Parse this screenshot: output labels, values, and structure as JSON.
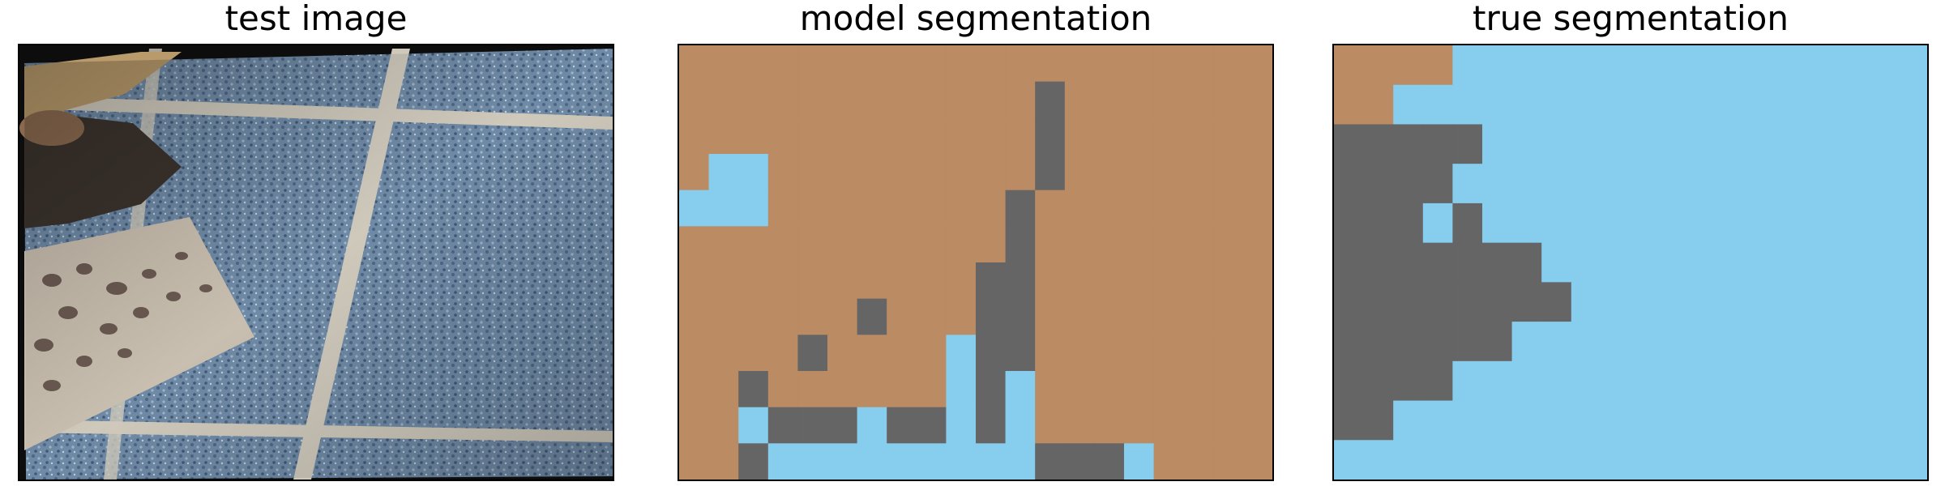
{
  "panels": [
    {
      "title": "test image"
    },
    {
      "title": "model segmentation"
    },
    {
      "title": "true segmentation"
    }
  ],
  "colors": {
    "class_0": "#bb8b63",
    "class_1": "#656565",
    "class_2": "#87ceee",
    "frame": "#000000",
    "photo_border": "#0d0d0d",
    "tile_blue": "#6f8aa6",
    "tile_dark": "#4e6683",
    "grout": "#cfc9bc",
    "board": "#c9bfb0",
    "stone": "#6b5a52",
    "wood": "#b89a6b",
    "dark_soil": "#3b332d"
  },
  "model_segmentation": [
    [
      0,
      0,
      0,
      0,
      0,
      0,
      0,
      0,
      0,
      0,
      0,
      0,
      0,
      0,
      0,
      0,
      0,
      0,
      0,
      0
    ],
    [
      0,
      0,
      0,
      0,
      0,
      0,
      0,
      0,
      0,
      0,
      0,
      0,
      1,
      0,
      0,
      0,
      0,
      0,
      0,
      0
    ],
    [
      0,
      0,
      0,
      0,
      0,
      0,
      0,
      0,
      0,
      0,
      0,
      0,
      1,
      0,
      0,
      0,
      0,
      0,
      0,
      0
    ],
    [
      0,
      2,
      2,
      0,
      0,
      0,
      0,
      0,
      0,
      0,
      0,
      0,
      1,
      0,
      0,
      0,
      0,
      0,
      0,
      0
    ],
    [
      2,
      2,
      2,
      0,
      0,
      0,
      0,
      0,
      0,
      0,
      0,
      1,
      0,
      0,
      0,
      0,
      0,
      0,
      0,
      0
    ],
    [
      0,
      0,
      0,
      0,
      0,
      0,
      0,
      0,
      0,
      0,
      0,
      1,
      0,
      0,
      0,
      0,
      0,
      0,
      0,
      0
    ],
    [
      0,
      0,
      0,
      0,
      0,
      0,
      0,
      0,
      0,
      0,
      1,
      1,
      0,
      0,
      0,
      0,
      0,
      0,
      0,
      0
    ],
    [
      0,
      0,
      0,
      0,
      0,
      0,
      1,
      0,
      0,
      0,
      1,
      1,
      0,
      0,
      0,
      0,
      0,
      0,
      0,
      0
    ],
    [
      0,
      0,
      0,
      0,
      1,
      0,
      0,
      0,
      0,
      2,
      1,
      1,
      0,
      0,
      0,
      0,
      0,
      0,
      0,
      0
    ],
    [
      0,
      0,
      1,
      0,
      0,
      0,
      0,
      0,
      0,
      2,
      1,
      2,
      0,
      0,
      0,
      0,
      0,
      0,
      0,
      0
    ],
    [
      0,
      0,
      2,
      1,
      1,
      1,
      2,
      1,
      1,
      2,
      1,
      2,
      0,
      0,
      0,
      0,
      0,
      0,
      0,
      0
    ],
    [
      0,
      0,
      1,
      2,
      2,
      2,
      2,
      2,
      2,
      2,
      2,
      2,
      1,
      1,
      1,
      2,
      0,
      0,
      0,
      0
    ]
  ],
  "true_segmentation": [
    [
      0,
      0,
      0,
      0,
      2,
      2,
      2,
      2,
      2,
      2,
      2,
      2,
      2,
      2,
      2,
      2,
      2,
      2,
      2,
      2
    ],
    [
      0,
      0,
      2,
      2,
      2,
      2,
      2,
      2,
      2,
      2,
      2,
      2,
      2,
      2,
      2,
      2,
      2,
      2,
      2,
      2
    ],
    [
      1,
      1,
      1,
      1,
      1,
      2,
      2,
      2,
      2,
      2,
      2,
      2,
      2,
      2,
      2,
      2,
      2,
      2,
      2,
      2
    ],
    [
      1,
      1,
      1,
      1,
      2,
      2,
      2,
      2,
      2,
      2,
      2,
      2,
      2,
      2,
      2,
      2,
      2,
      2,
      2,
      2
    ],
    [
      1,
      1,
      1,
      2,
      1,
      2,
      2,
      2,
      2,
      2,
      2,
      2,
      2,
      2,
      2,
      2,
      2,
      2,
      2,
      2
    ],
    [
      1,
      1,
      1,
      1,
      1,
      1,
      1,
      2,
      2,
      2,
      2,
      2,
      2,
      2,
      2,
      2,
      2,
      2,
      2,
      2
    ],
    [
      1,
      1,
      1,
      1,
      1,
      1,
      1,
      1,
      2,
      2,
      2,
      2,
      2,
      2,
      2,
      2,
      2,
      2,
      2,
      2
    ],
    [
      1,
      1,
      1,
      1,
      1,
      1,
      2,
      2,
      2,
      2,
      2,
      2,
      2,
      2,
      2,
      2,
      2,
      2,
      2,
      2
    ],
    [
      1,
      1,
      1,
      1,
      2,
      2,
      2,
      2,
      2,
      2,
      2,
      2,
      2,
      2,
      2,
      2,
      2,
      2,
      2,
      2
    ],
    [
      1,
      1,
      2,
      2,
      2,
      2,
      2,
      2,
      2,
      2,
      2,
      2,
      2,
      2,
      2,
      2,
      2,
      2,
      2,
      2
    ],
    [
      2,
      2,
      2,
      2,
      2,
      2,
      2,
      2,
      2,
      2,
      2,
      2,
      2,
      2,
      2,
      2,
      2,
      2,
      2,
      2
    ]
  ]
}
